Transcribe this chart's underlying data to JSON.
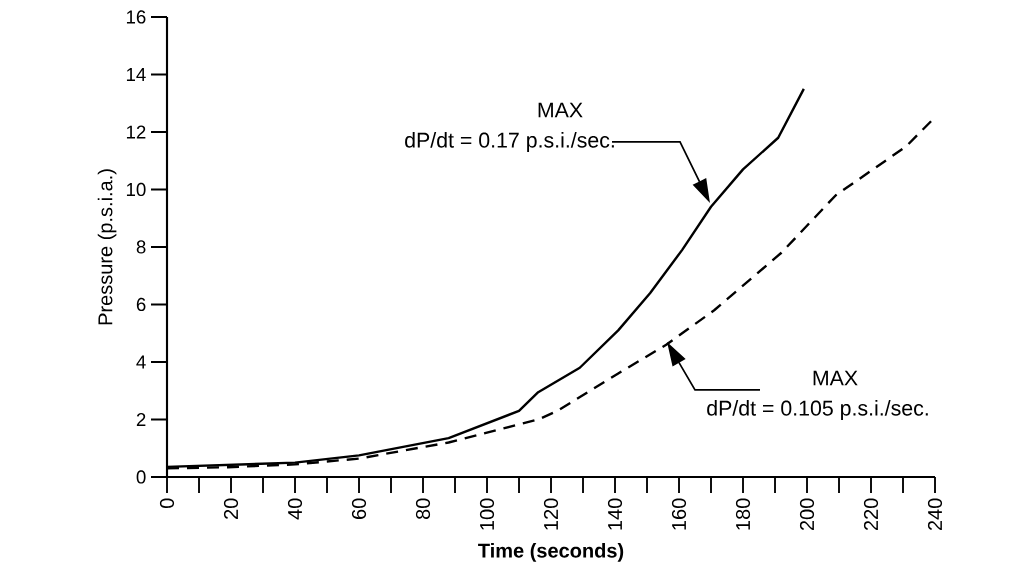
{
  "chart_data": {
    "type": "line",
    "xlabel": "Time (seconds)",
    "ylabel": "Pressure (p.s.i.a.)",
    "series": [
      {
        "color": "#000000",
        "line_style": "solid",
        "x": [
          0,
          40,
          60,
          88,
          110,
          116,
          129,
          141,
          151,
          161,
          170,
          180,
          191,
          199
        ],
        "values": [
          0.35,
          0.5,
          0.75,
          1.35,
          2.3,
          2.95,
          3.8,
          5.1,
          6.4,
          7.9,
          9.4,
          10.7,
          11.8,
          13.5
        ]
      },
      {
        "color": "#000000",
        "line_style": "dashed",
        "x": [
          0,
          19,
          40,
          60,
          88,
          116,
          122,
          141,
          156,
          171,
          192,
          209,
          231,
          239
        ],
        "values": [
          0.3,
          0.34,
          0.44,
          0.64,
          1.2,
          2.0,
          2.3,
          3.6,
          4.6,
          5.8,
          7.8,
          9.8,
          11.5,
          12.4
        ]
      }
    ],
    "xlim": [
      0,
      240
    ],
    "ylim": [
      0,
      16
    ],
    "xticks": [
      0,
      {
        "value": 10,
        "label": null
      },
      20,
      {
        "value": 30,
        "label": null
      },
      40,
      {
        "value": 50,
        "label": null
      },
      60,
      {
        "value": 70,
        "label": null
      },
      80,
      {
        "value": 90,
        "label": null
      },
      100,
      {
        "value": 110,
        "label": null
      },
      120,
      {
        "value": 130,
        "label": null
      },
      140,
      {
        "value": 150,
        "label": null
      },
      160,
      {
        "value": 170,
        "label": null
      },
      180,
      {
        "value": 190,
        "label": null
      },
      200,
      {
        "value": 210,
        "label": null
      },
      220,
      {
        "value": 230,
        "label": null
      },
      240
    ],
    "yticks": [
      0,
      2,
      4,
      6,
      8,
      10,
      12,
      14,
      16
    ],
    "annotations": [
      "MAX",
      "dP/dt = 0.17 p.s.i./sec.",
      "MAX",
      "dP/dt = 0.105 p.s.i./sec."
    ]
  }
}
